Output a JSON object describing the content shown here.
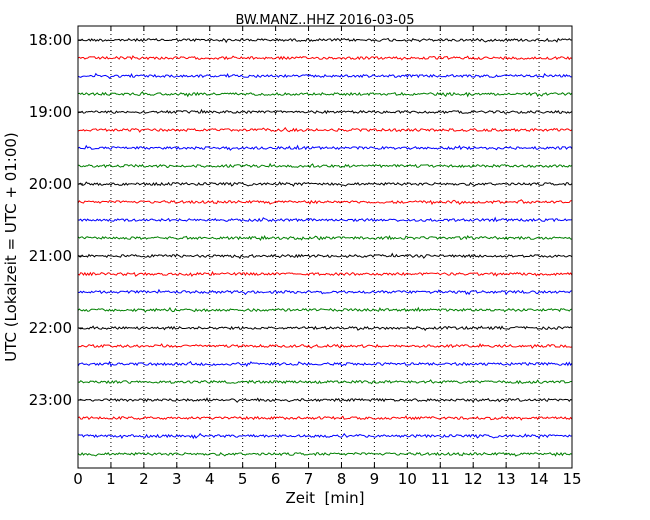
{
  "chart_data": {
    "type": "line",
    "title": "BW.MANZ..HHZ 2016-03-05",
    "xlabel": "Zeit  [min]",
    "ylabel": "UTC (Lokalzeit = UTC + 01:00)",
    "xlim": [
      0,
      15
    ],
    "x_ticks": [
      "0",
      "1",
      "2",
      "3",
      "4",
      "5",
      "6",
      "7",
      "8",
      "9",
      "10",
      "11",
      "12",
      "13",
      "14",
      "15"
    ],
    "y_tick_labels": [
      "18:00",
      "19:00",
      "20:00",
      "21:00",
      "22:00",
      "23:00"
    ],
    "grid": "vertical dotted",
    "trace_colors": [
      "#000000",
      "#ff0000",
      "#0000ff",
      "#008000"
    ],
    "traces": [
      {
        "start": "18:00"
      },
      {
        "start": "18:15"
      },
      {
        "start": "18:30"
      },
      {
        "start": "18:45"
      },
      {
        "start": "19:00"
      },
      {
        "start": "19:15"
      },
      {
        "start": "19:30"
      },
      {
        "start": "19:45"
      },
      {
        "start": "20:00"
      },
      {
        "start": "20:15"
      },
      {
        "start": "20:30"
      },
      {
        "start": "20:45"
      },
      {
        "start": "21:00"
      },
      {
        "start": "21:15"
      },
      {
        "start": "21:30"
      },
      {
        "start": "21:45"
      },
      {
        "start": "22:00"
      },
      {
        "start": "22:15"
      },
      {
        "start": "22:30"
      },
      {
        "start": "22:45"
      },
      {
        "start": "23:00"
      },
      {
        "start": "23:15"
      },
      {
        "start": "23:30"
      },
      {
        "start": "23:45"
      }
    ]
  }
}
